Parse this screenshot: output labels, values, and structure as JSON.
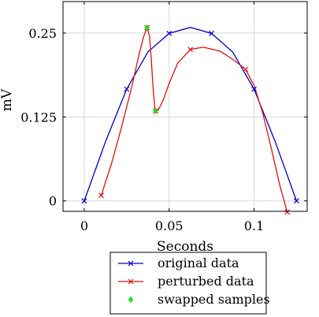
{
  "chart_data": {
    "type": "line",
    "title": "",
    "xlabel": "Seconds",
    "ylabel": "mV",
    "xlim": [
      -0.0125,
      0.1313
    ],
    "ylim": [
      -0.0156,
      0.2969
    ],
    "grid": true,
    "legend_position": "bottom-outside",
    "x_ticks": [
      {
        "value": 0,
        "label": "0"
      },
      {
        "value": 0.05,
        "label": "0.05"
      },
      {
        "value": 0.1,
        "label": "0.1"
      }
    ],
    "y_ticks": [
      {
        "value": 0,
        "label": "0"
      },
      {
        "value": 0.125,
        "label": "0.125"
      },
      {
        "value": 0.25,
        "label": "0.25"
      }
    ],
    "series": [
      {
        "name": "original data",
        "color": "#0000cc",
        "marker": "x",
        "x": [
          0,
          0.025,
          0.05,
          0.075,
          0.1,
          0.125
        ],
        "y": [
          0,
          0.1665,
          0.2495,
          0.2495,
          0.1665,
          0
        ],
        "smooth": false
      },
      {
        "name": "perturbed data",
        "color": "#e01010",
        "marker": "x",
        "x": [
          0.01,
          0.037,
          0.042,
          0.0625,
          0.095,
          0.1195
        ],
        "y": [
          0.008,
          0.258,
          0.134,
          0.2255,
          0.196,
          -0.0165
        ],
        "smooth": true
      },
      {
        "name": "swapped samples",
        "color": "#22dd22",
        "marker": "diamond",
        "x": [
          0.037,
          0.042
        ],
        "y": [
          0.258,
          0.134
        ],
        "line": false
      }
    ],
    "original_curve": {
      "x": [
        0,
        0.0125,
        0.025,
        0.0375,
        0.05,
        0.0625,
        0.075,
        0.0875,
        0.1,
        0.1125,
        0.125
      ],
      "y": [
        0,
        0.088,
        0.1665,
        0.222,
        0.2495,
        0.2585,
        0.2495,
        0.2215,
        0.1665,
        0.088,
        0
      ]
    },
    "perturbed_curve": {
      "x": [
        0.01,
        0.016,
        0.022,
        0.028,
        0.032,
        0.035,
        0.037,
        0.0385,
        0.0395,
        0.0405,
        0.0415,
        0.042,
        0.0435,
        0.0465,
        0.05,
        0.055,
        0.0625,
        0.07,
        0.08,
        0.088,
        0.095,
        0.1,
        0.105,
        0.11,
        0.115,
        0.1195
      ],
      "y": [
        0.008,
        0.055,
        0.11,
        0.17,
        0.215,
        0.245,
        0.258,
        0.245,
        0.21,
        0.17,
        0.14,
        0.134,
        0.135,
        0.15,
        0.175,
        0.205,
        0.2255,
        0.229,
        0.223,
        0.21,
        0.196,
        0.172,
        0.132,
        0.08,
        0.025,
        -0.0165
      ]
    }
  }
}
